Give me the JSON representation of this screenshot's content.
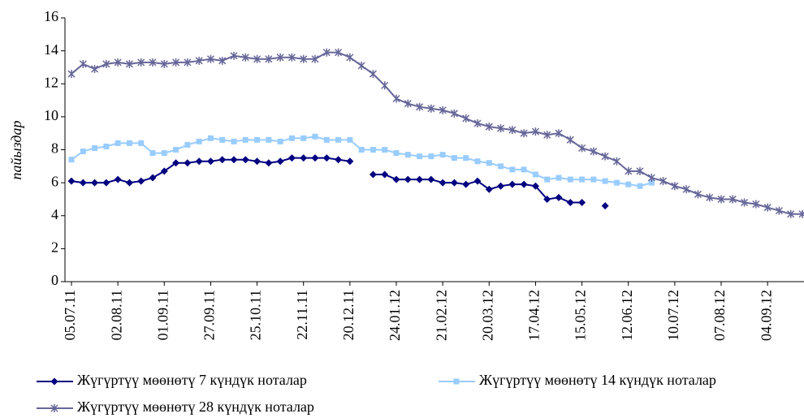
{
  "chart_data": {
    "type": "line",
    "y_label": "пайыздар",
    "categories": [
      "05.07.11",
      null,
      null,
      null,
      "02.08.11",
      null,
      null,
      null,
      "01.09.11",
      null,
      null,
      null,
      "27.09.11",
      null,
      null,
      null,
      "25.10.11",
      null,
      null,
      null,
      "22.11.11",
      null,
      null,
      null,
      "20.12.11",
      null,
      null,
      null,
      "24.01.12",
      null,
      null,
      null,
      "21.02.12",
      null,
      null,
      null,
      "20.03.12",
      null,
      null,
      null,
      "17.04.12",
      null,
      null,
      null,
      "15.05.12",
      null,
      null,
      null,
      "12.06.12",
      null,
      null,
      null,
      "10.07.12",
      null,
      null,
      null,
      "07.08.12",
      null,
      null,
      null,
      "04.09.12",
      null,
      null,
      null
    ],
    "series": [
      {
        "name": "Жүгүртүү мөөнөтү 7 күндүк ноталар",
        "color": "#000080",
        "marker": "diamond",
        "values": [
          6.1,
          6.0,
          6.0,
          6.0,
          6.2,
          6.0,
          6.1,
          6.3,
          6.7,
          7.2,
          7.2,
          7.3,
          7.3,
          7.4,
          7.4,
          7.4,
          7.3,
          7.2,
          7.3,
          7.5,
          7.5,
          7.5,
          7.5,
          7.4,
          7.3,
          null,
          6.5,
          6.5,
          6.2,
          6.2,
          6.2,
          6.2,
          6.0,
          6.0,
          5.9,
          6.1,
          5.6,
          5.8,
          5.9,
          5.9,
          5.8,
          5.0,
          5.1,
          4.8,
          4.8,
          null,
          4.6,
          null,
          null,
          null,
          null,
          null,
          null,
          null,
          null,
          null,
          null,
          null,
          null,
          null,
          null,
          null,
          null,
          null
        ]
      },
      {
        "name": "Жүгүртүү мөөнөтү 14 күндүк ноталар",
        "color": "#99ccff",
        "marker": "square",
        "values": [
          7.4,
          7.9,
          8.1,
          8.2,
          8.4,
          8.4,
          8.4,
          7.8,
          7.8,
          8.0,
          8.3,
          8.5,
          8.7,
          8.6,
          8.5,
          8.6,
          8.6,
          8.6,
          8.5,
          8.7,
          8.7,
          8.8,
          8.6,
          8.6,
          8.6,
          8.0,
          8.0,
          8.0,
          7.8,
          7.7,
          7.6,
          7.6,
          7.7,
          7.5,
          7.5,
          7.3,
          7.2,
          7.0,
          6.8,
          6.8,
          6.5,
          6.2,
          6.3,
          6.2,
          6.2,
          6.2,
          6.1,
          6.0,
          5.9,
          5.8,
          6.0,
          null,
          null,
          null,
          null,
          null,
          null,
          null,
          null,
          null,
          null,
          null,
          null,
          null
        ]
      },
      {
        "name": "Жүгүртүү мөөнөтү 28  күндүк ноталар",
        "color": "#666699",
        "marker": "star",
        "values": [
          12.6,
          13.2,
          12.9,
          13.2,
          13.3,
          13.2,
          13.3,
          13.3,
          13.2,
          13.3,
          13.3,
          13.4,
          13.5,
          13.4,
          13.7,
          13.6,
          13.5,
          13.5,
          13.6,
          13.6,
          13.5,
          13.5,
          13.9,
          13.9,
          13.6,
          13.1,
          12.6,
          11.9,
          11.1,
          10.8,
          10.6,
          10.5,
          10.4,
          10.2,
          9.9,
          9.6,
          9.4,
          9.3,
          9.2,
          9.0,
          9.1,
          8.9,
          9.0,
          8.6,
          8.1,
          7.9,
          7.6,
          7.3,
          6.7,
          6.7,
          6.3,
          6.1,
          5.8,
          5.6,
          5.3,
          5.1,
          5.0,
          5.0,
          4.8,
          4.7,
          4.5,
          4.3,
          4.1,
          4.1
        ]
      }
    ],
    "ylim": [
      0,
      16
    ],
    "yticks": [
      0,
      2,
      4,
      6,
      8,
      10,
      12,
      14,
      16
    ],
    "grid": false,
    "legend": "bottom"
  }
}
